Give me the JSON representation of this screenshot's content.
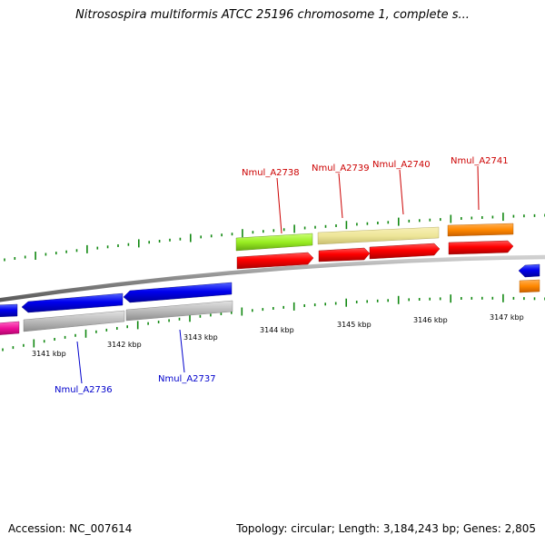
{
  "title": "Nitrosospira multiformis ATCC 25196 chromosome 1, complete s...",
  "footer": {
    "accession_label": "Accession:",
    "accession_value": "NC_007614",
    "topology_label": "Topology:",
    "topology_value": "circular;",
    "length_label": "Length:",
    "length_value": "3,184,243 bp;",
    "genes_label": "Genes:",
    "genes_value": "2,805"
  },
  "scale_labels": [
    "3141 kbp",
    "3142 kbp",
    "3143 kbp",
    "3144 kbp",
    "3145 kbp",
    "3146 kbp",
    "3147 kbp"
  ],
  "gene_labels": [
    {
      "name": "Nmul_A2736",
      "color": "#0000cc"
    },
    {
      "name": "Nmul_A2737",
      "color": "#0000cc"
    },
    {
      "name": "Nmul_A2738",
      "color": "#cc0000"
    },
    {
      "name": "Nmul_A2739",
      "color": "#cc0000"
    },
    {
      "name": "Nmul_A2740",
      "color": "#cc0000"
    },
    {
      "name": "Nmul_A2741",
      "color": "#cc0000"
    }
  ],
  "colors": {
    "forward_cds": "#ff0000",
    "reverse_cds": "#0000ee",
    "backbone": "#888888",
    "ticks": "#118811",
    "light_green": "#aaff33",
    "khaki": "#eee699",
    "orange": "#ff8800",
    "grey": "#bbbbbb",
    "magenta": "#ee1199"
  }
}
